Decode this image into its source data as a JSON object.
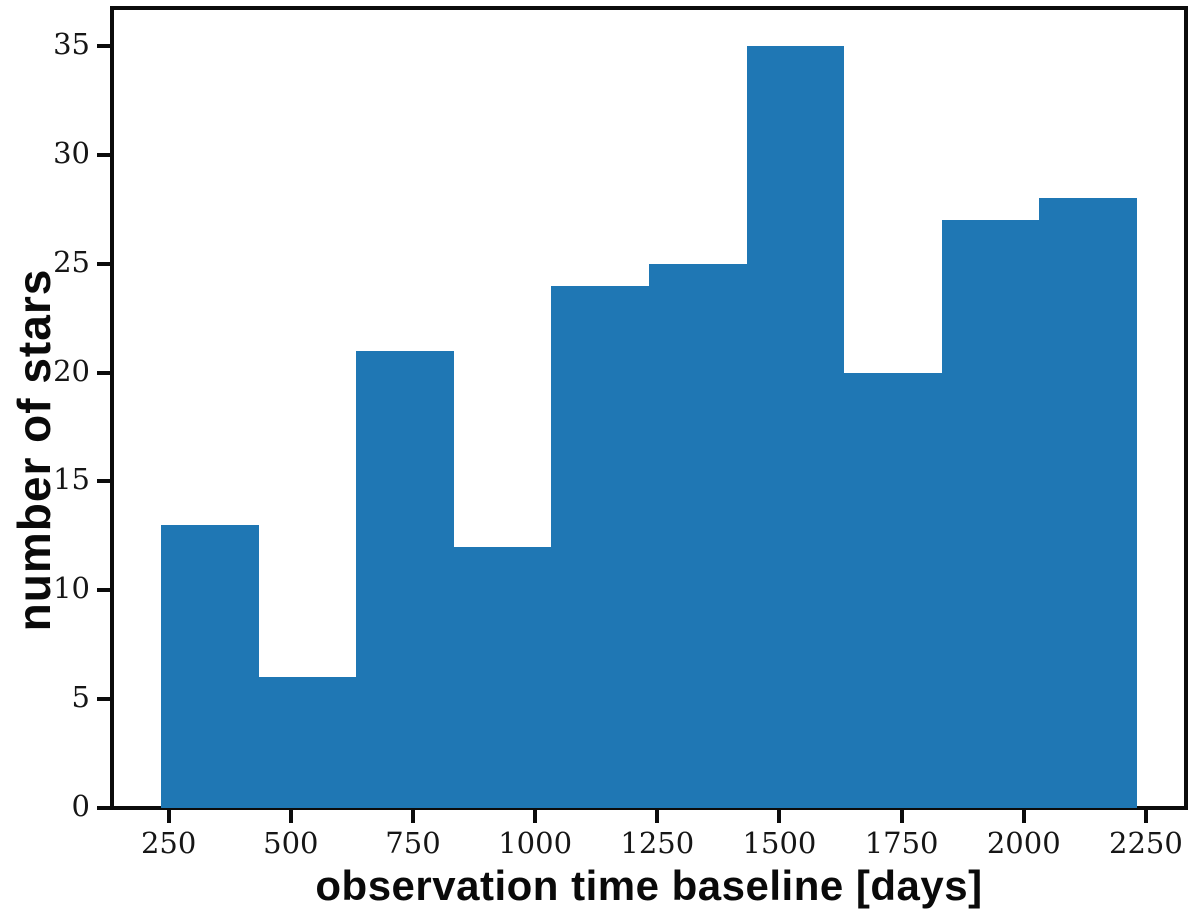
{
  "chart_data": {
    "type": "bar",
    "subtype": "histogram",
    "title": "",
    "xlabel": "observation time baseline [days]",
    "ylabel": "number of stars",
    "bin_edges": [
      234,
      434,
      634,
      834,
      1033,
      1233,
      1433,
      1633,
      1833,
      2032,
      2232
    ],
    "values": [
      13,
      6,
      21,
      12,
      24,
      25,
      35,
      20,
      27,
      28
    ],
    "x_ticks": [
      250,
      500,
      750,
      1000,
      1250,
      1500,
      1750,
      2000,
      2250
    ],
    "y_ticks": [
      0,
      5,
      10,
      15,
      20,
      25,
      30,
      35
    ],
    "xlim": [
      134,
      2332
    ],
    "ylim": [
      0,
      36.75
    ],
    "grid": false,
    "legend_position": "none",
    "bar_color": "#1f77b4",
    "axis_color": "#0c0c0c",
    "tick_label_color": "#161616"
  }
}
